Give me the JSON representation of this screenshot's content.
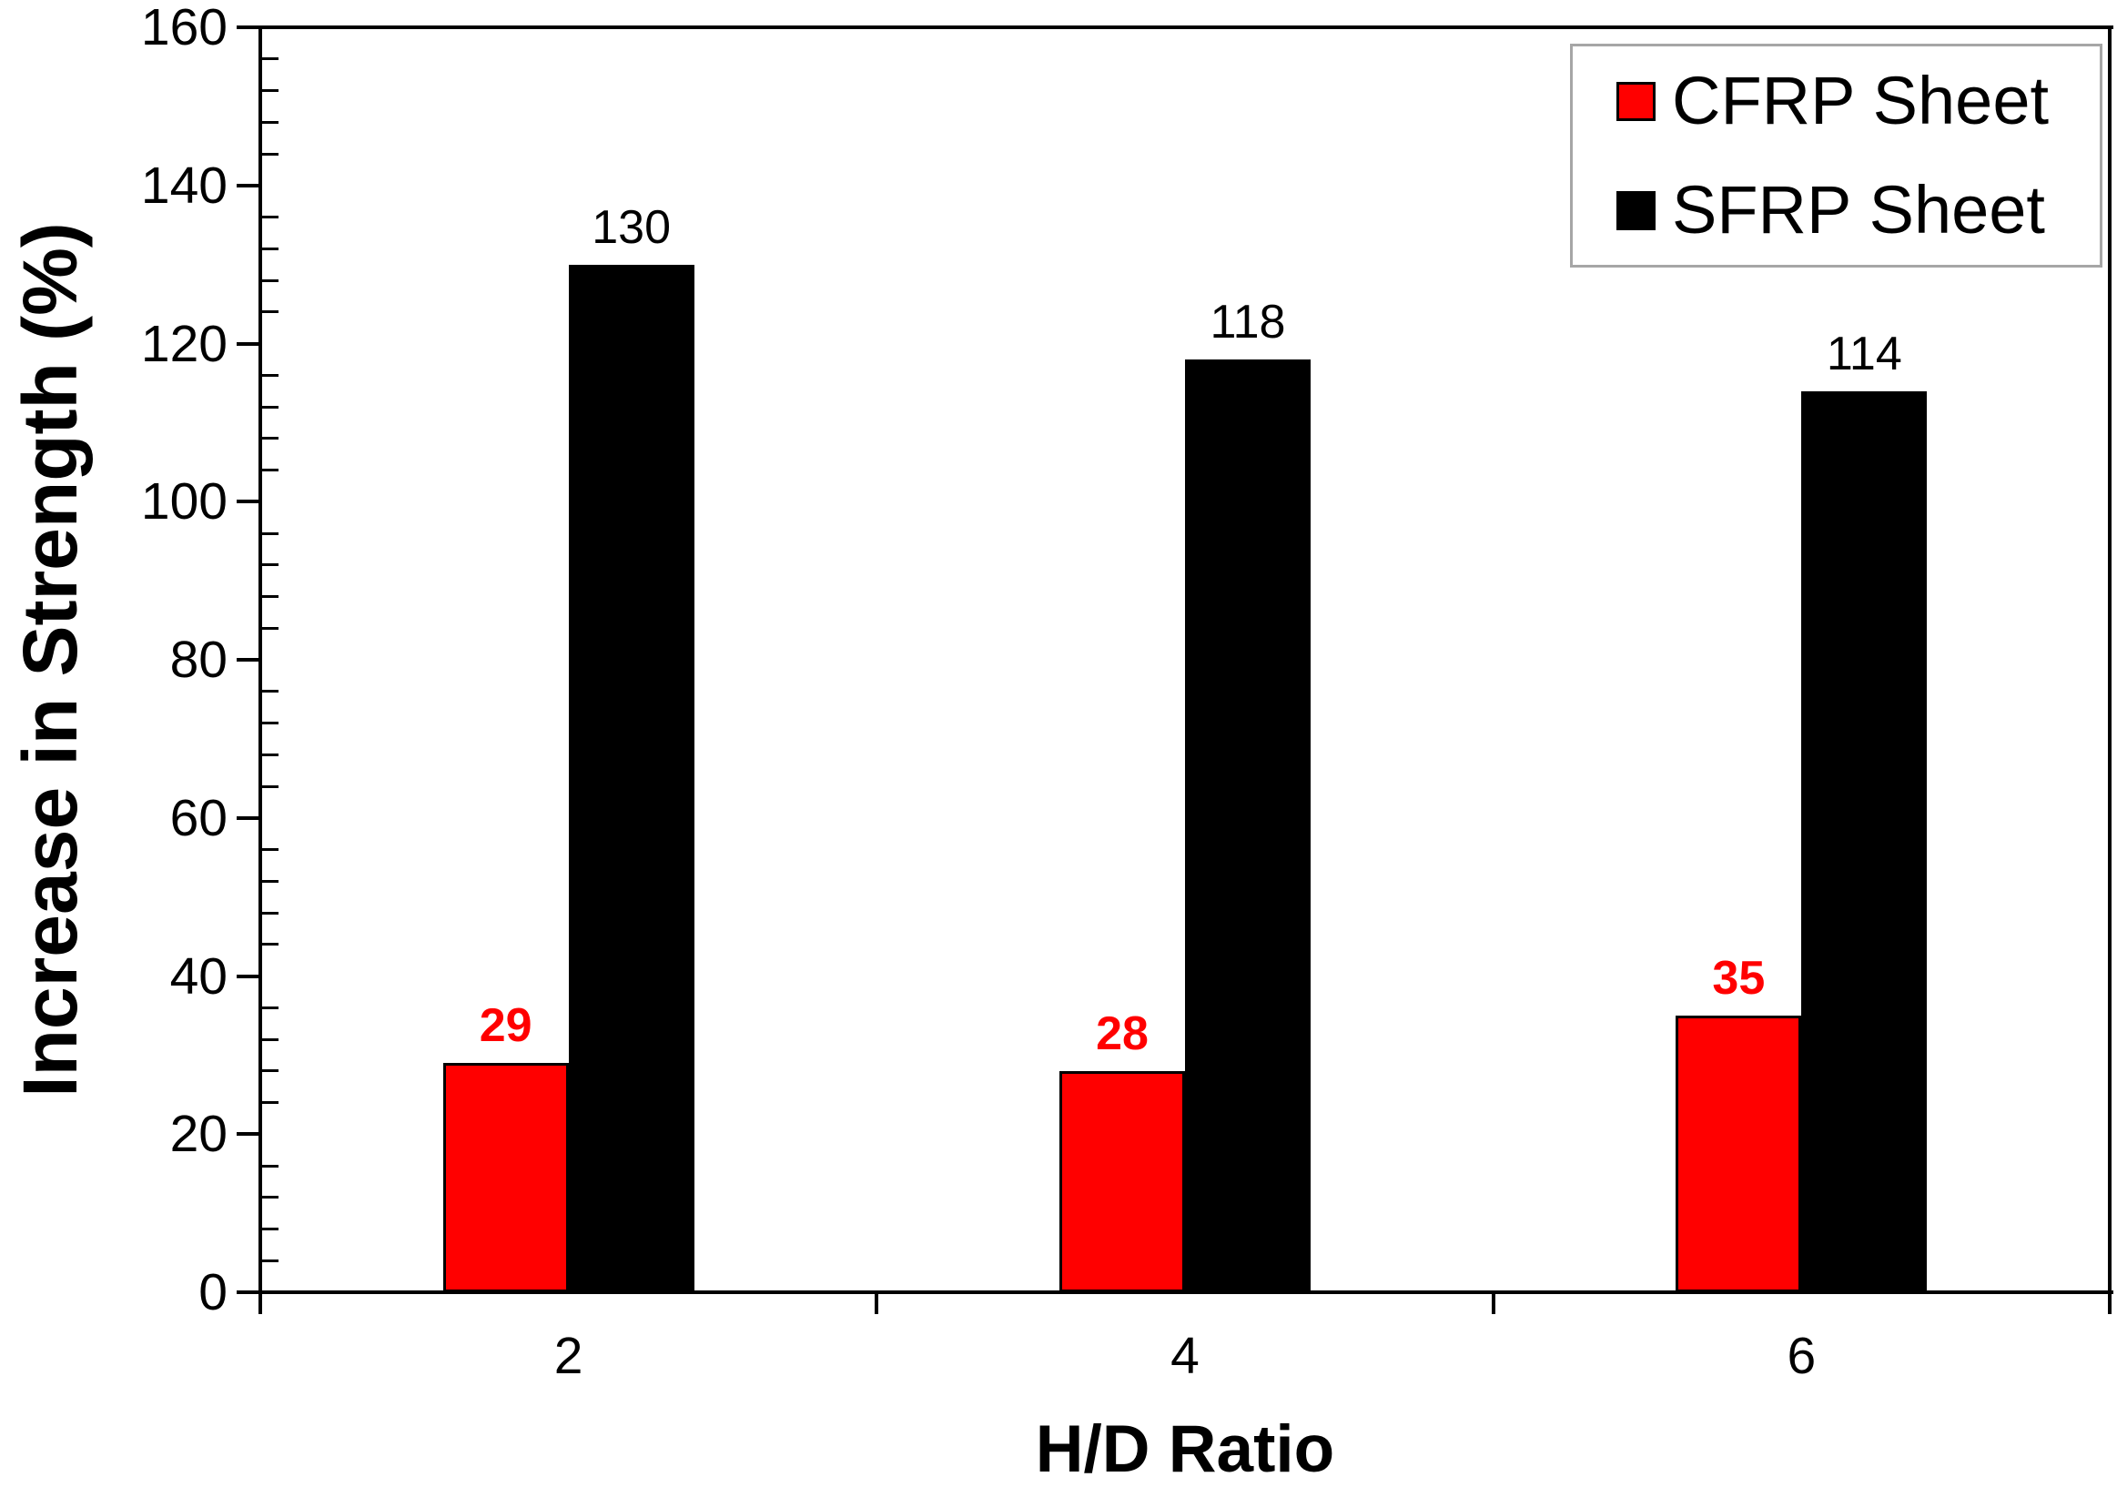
{
  "figure": {
    "background": "#ffffff",
    "frame_color": "#000000"
  },
  "chart_data": {
    "type": "bar",
    "title": "",
    "xlabel": "H/D Ratio",
    "ylabel": "Increase in Strength (%)",
    "categories": [
      "2",
      "4",
      "6"
    ],
    "series": [
      {
        "name": "CFRP Sheet",
        "values": [
          29,
          28,
          35
        ],
        "color": "#ff0000",
        "label_color": "#ff0000",
        "label_bold": true
      },
      {
        "name": "SFRP Sheet",
        "values": [
          130,
          118,
          114
        ],
        "color": "#000000",
        "label_color": "#000000",
        "label_bold": false
      }
    ],
    "ylim": [
      0,
      160
    ],
    "y_major_step": 20,
    "y_minor_step": 4,
    "y_tick_labels": [
      "0",
      "20",
      "40",
      "60",
      "80",
      "100",
      "120",
      "140",
      "160"
    ],
    "grid": false,
    "bar_value_labels": true,
    "legend_position": "top-right",
    "legend_border_color": "#a6a6a6"
  }
}
